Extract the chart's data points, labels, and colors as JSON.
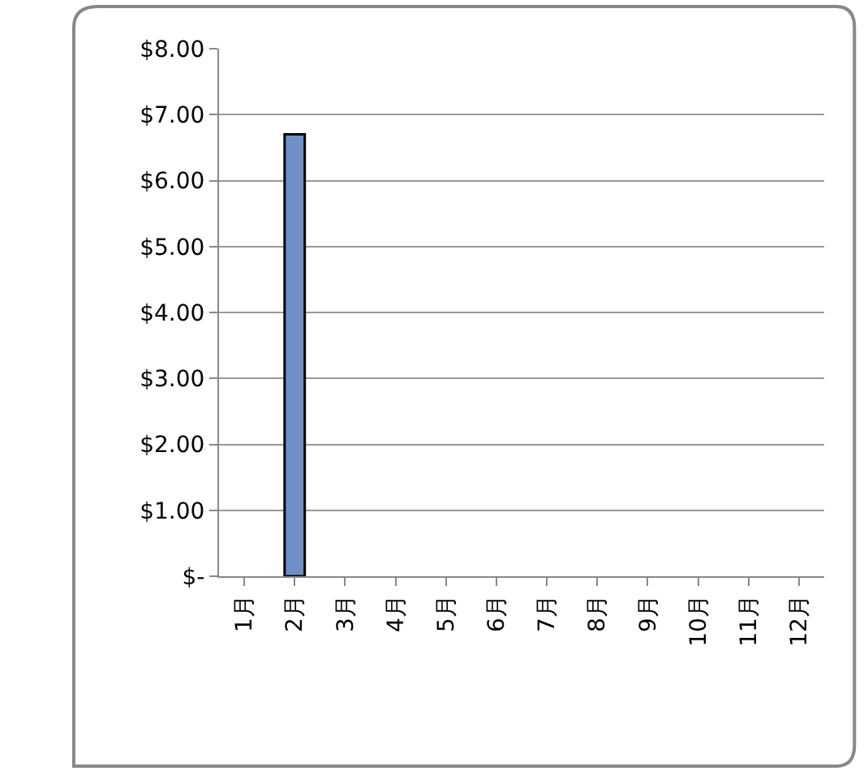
{
  "chart_data": {
    "type": "bar",
    "categories": [
      "1月",
      "2月",
      "3月",
      "4月",
      "5月",
      "6月",
      "7月",
      "8月",
      "9月",
      "10月",
      "11月",
      "12月"
    ],
    "values": [
      null,
      6.7,
      null,
      null,
      null,
      null,
      null,
      null,
      null,
      null,
      null,
      null
    ],
    "color": "#6f8fc6",
    "ylim": [
      0,
      8
    ],
    "yticks": [
      {
        "value": 0,
        "label": "$-"
      },
      {
        "value": 1,
        "label": "$1.00"
      },
      {
        "value": 2,
        "label": "$2.00"
      },
      {
        "value": 3,
        "label": "$3.00"
      },
      {
        "value": 4,
        "label": "$4.00"
      },
      {
        "value": 5,
        "label": "$5.00"
      },
      {
        "value": 6,
        "label": "$6.00"
      },
      {
        "value": 7,
        "label": "$7.00"
      },
      {
        "value": 8,
        "label": "$8.00"
      }
    ],
    "grid": "y",
    "legend": false
  }
}
